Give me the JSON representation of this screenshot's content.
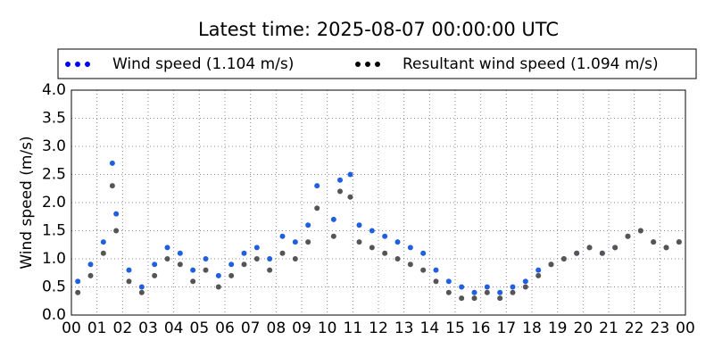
{
  "chart_data": {
    "type": "scatter",
    "title": "Latest time: 2025-08-07 00:00:00 UTC",
    "y_label": "Wind speed (m/s)",
    "x": [
      0.25,
      0.75,
      1.25,
      1.6,
      1.75,
      2.25,
      2.75,
      3.25,
      3.75,
      4.25,
      4.75,
      5.25,
      5.75,
      6.25,
      6.75,
      7.25,
      7.75,
      8.25,
      8.75,
      9.25,
      9.6,
      10.25,
      10.5,
      10.9,
      11.25,
      11.75,
      12.25,
      12.75,
      13.25,
      13.75,
      14.25,
      14.75,
      15.25,
      15.75,
      16.25,
      16.75,
      17.25,
      17.75,
      18.25,
      18.75,
      19.25,
      19.75,
      20.25,
      20.75,
      21.25,
      21.75,
      22.25,
      22.75,
      23.25,
      23.75
    ],
    "series": [
      {
        "name": "Wind speed (1.104 m/s)",
        "color": "#1f5fe0",
        "values": [
          0.6,
          0.9,
          1.3,
          2.7,
          1.8,
          0.8,
          0.5,
          0.9,
          1.2,
          1.1,
          0.8,
          1.0,
          0.7,
          0.9,
          1.1,
          1.2,
          1.0,
          1.4,
          1.3,
          1.6,
          2.3,
          1.7,
          2.4,
          2.5,
          1.6,
          1.5,
          1.4,
          1.3,
          1.2,
          1.1,
          0.8,
          0.6,
          0.5,
          0.4,
          0.5,
          0.4,
          0.5,
          0.6,
          0.8,
          0.9,
          1.0,
          1.1,
          1.2,
          1.1,
          1.2,
          1.4,
          1.5,
          1.3,
          1.2,
          1.3
        ]
      },
      {
        "name": "Resultant wind speed (1.094 m/s)",
        "color": "#555555",
        "values": [
          0.4,
          0.7,
          1.1,
          2.3,
          1.5,
          0.6,
          0.4,
          0.7,
          1.0,
          0.9,
          0.6,
          0.8,
          0.5,
          0.7,
          0.9,
          1.0,
          0.8,
          1.1,
          1.0,
          1.3,
          1.9,
          1.4,
          2.2,
          2.1,
          1.3,
          1.2,
          1.1,
          1.0,
          0.9,
          0.8,
          0.6,
          0.4,
          0.3,
          0.3,
          0.4,
          0.3,
          0.4,
          0.5,
          0.7,
          0.9,
          1.0,
          1.1,
          1.2,
          1.1,
          1.2,
          1.4,
          1.5,
          1.3,
          1.2,
          1.3
        ]
      }
    ],
    "xlim": [
      0,
      24
    ],
    "xticks": [
      {
        "value": 0,
        "label": "00"
      },
      {
        "value": 1,
        "label": "01"
      },
      {
        "value": 2,
        "label": "02"
      },
      {
        "value": 3,
        "label": "03"
      },
      {
        "value": 4,
        "label": "04"
      },
      {
        "value": 5,
        "label": "05"
      },
      {
        "value": 6,
        "label": "06"
      },
      {
        "value": 7,
        "label": "07"
      },
      {
        "value": 8,
        "label": "08"
      },
      {
        "value": 9,
        "label": "09"
      },
      {
        "value": 10,
        "label": "10"
      },
      {
        "value": 11,
        "label": "11"
      },
      {
        "value": 12,
        "label": "12"
      },
      {
        "value": 13,
        "label": "13"
      },
      {
        "value": 14,
        "label": "14"
      },
      {
        "value": 15,
        "label": "15"
      },
      {
        "value": 16,
        "label": "16"
      },
      {
        "value": 17,
        "label": "17"
      },
      {
        "value": 18,
        "label": "18"
      },
      {
        "value": 19,
        "label": "19"
      },
      {
        "value": 20,
        "label": "20"
      },
      {
        "value": 21,
        "label": "21"
      },
      {
        "value": 22,
        "label": "22"
      },
      {
        "value": 23,
        "label": "23"
      },
      {
        "value": 24,
        "label": "00"
      }
    ],
    "ylim": [
      0,
      4
    ],
    "yticks": [
      {
        "value": 0,
        "label": "0.0"
      },
      {
        "value": 0.5,
        "label": "0.5"
      },
      {
        "value": 1,
        "label": "1.0"
      },
      {
        "value": 1.5,
        "label": "1.5"
      },
      {
        "value": 2,
        "label": "2.0"
      },
      {
        "value": 2.5,
        "label": "2.5"
      },
      {
        "value": 3,
        "label": "3.0"
      },
      {
        "value": 3.5,
        "label": "3.5"
      },
      {
        "value": 4,
        "label": "4.0"
      }
    ],
    "grid": true
  }
}
